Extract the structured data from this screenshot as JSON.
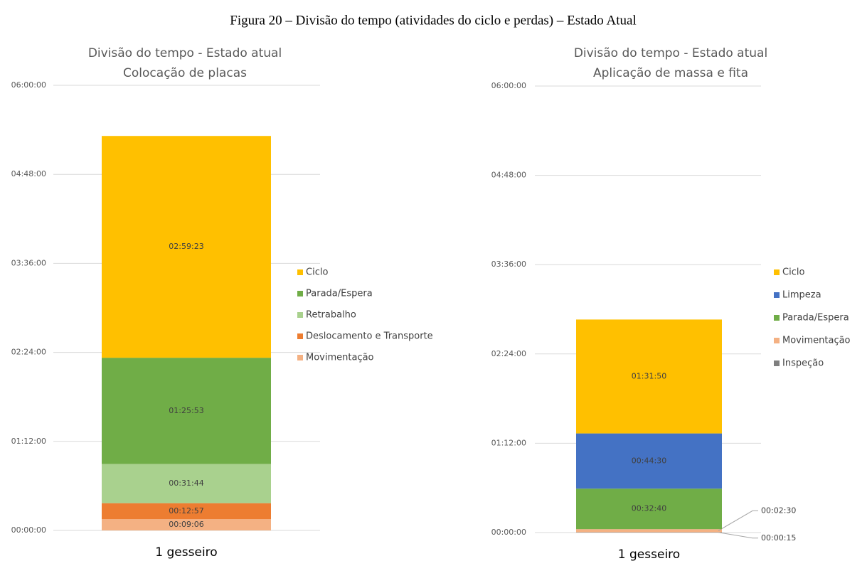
{
  "figure_caption": "Figura 20 – Divisão do tempo (atividades do ciclo e perdas) – Estado Atual",
  "chart_data": [
    {
      "type": "bar",
      "stacked": true,
      "title": [
        "Divisão do tempo - Estado atual",
        "Colocação de placas"
      ],
      "categories": [
        "1 gesseiro"
      ],
      "ylim": [
        0,
        21600
      ],
      "yticks": [
        {
          "value": 0,
          "label": "00:00:00"
        },
        {
          "value": 4320,
          "label": "01:12:00"
        },
        {
          "value": 8640,
          "label": "02:24:00"
        },
        {
          "value": 12960,
          "label": "03:36:00"
        },
        {
          "value": 17280,
          "label": "04:48:00"
        },
        {
          "value": 21600,
          "label": "06:00:00"
        }
      ],
      "grid": true,
      "legend": "right",
      "series": [
        {
          "name": "Movimentação",
          "color": "#f4b183",
          "values": [
            546
          ],
          "value_labels": [
            "00:09:06"
          ]
        },
        {
          "name": "Deslocamento e Transporte",
          "color": "#ed7d31",
          "values": [
            777
          ],
          "value_labels": [
            "00:12:57"
          ]
        },
        {
          "name": "Retrabalho",
          "color": "#a9d18e",
          "values": [
            1904
          ],
          "value_labels": [
            "00:31:44"
          ]
        },
        {
          "name": "Parada/Espera",
          "color": "#70ad47",
          "values": [
            5153
          ],
          "value_labels": [
            "01:25:53"
          ]
        },
        {
          "name": "Ciclo",
          "color": "#ffc000",
          "values": [
            10763
          ],
          "value_labels": [
            "02:59:23"
          ]
        }
      ]
    },
    {
      "type": "bar",
      "stacked": true,
      "title": [
        "Divisão do tempo - Estado atual",
        "Aplicação de massa e fita"
      ],
      "categories": [
        "1 gesseiro"
      ],
      "ylim": [
        0,
        21600
      ],
      "yticks": [
        {
          "value": 0,
          "label": "00:00:00"
        },
        {
          "value": 4320,
          "label": "01:12:00"
        },
        {
          "value": 8640,
          "label": "02:24:00"
        },
        {
          "value": 12960,
          "label": "03:36:00"
        },
        {
          "value": 17280,
          "label": "04:48:00"
        },
        {
          "value": 21600,
          "label": "06:00:00"
        }
      ],
      "grid": true,
      "legend": "right",
      "series": [
        {
          "name": "Inspeção",
          "color": "#7f7f7f",
          "values": [
            15
          ],
          "value_labels": [
            "00:00:15"
          ]
        },
        {
          "name": "Movimentação",
          "color": "#f4b183",
          "values": [
            150
          ],
          "value_labels": [
            "00:02:30"
          ]
        },
        {
          "name": "Parada/Espera",
          "color": "#70ad47",
          "values": [
            1960
          ],
          "value_labels": [
            "00:32:40"
          ]
        },
        {
          "name": "Limpeza",
          "color": "#4472c4",
          "values": [
            2670
          ],
          "value_labels": [
            "00:44:30"
          ]
        },
        {
          "name": "Ciclo",
          "color": "#ffc000",
          "values": [
            5510
          ],
          "value_labels": [
            "01:31:50"
          ]
        }
      ]
    }
  ]
}
